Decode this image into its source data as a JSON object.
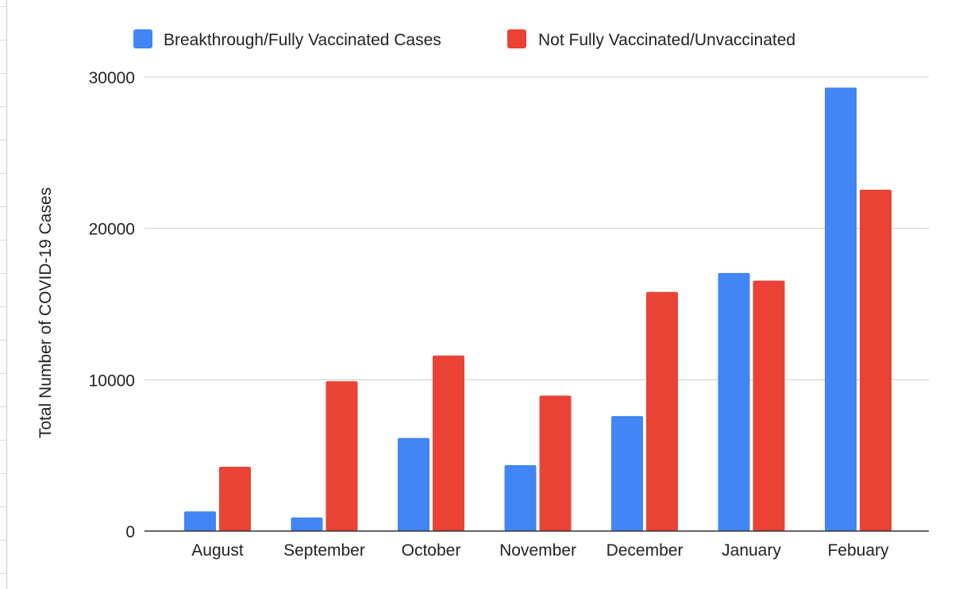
{
  "chart_data": {
    "type": "bar",
    "title": "",
    "xlabel": "",
    "ylabel": "Total Number of COVID-19 Cases",
    "ylim": [
      0,
      30000
    ],
    "yticks": [
      0,
      10000,
      20000,
      30000
    ],
    "ytick_labels": [
      "0",
      "10000",
      "20000",
      "30000"
    ],
    "grid": true,
    "legend_position": "top",
    "categories": [
      "August",
      "September",
      "October",
      "November",
      "December",
      "January",
      "Febuary"
    ],
    "series": [
      {
        "name": "Breakthrough/Fully Vaccinated Cases",
        "color": "#4285f4",
        "values": [
          1300,
          900,
          6150,
          4350,
          7600,
          17050,
          29300
        ]
      },
      {
        "name": "Not Fully Vaccinated/Unvaccinated",
        "color": "#ea4335",
        "values": [
          4250,
          9900,
          11600,
          8950,
          15800,
          16550,
          22550
        ]
      }
    ]
  }
}
